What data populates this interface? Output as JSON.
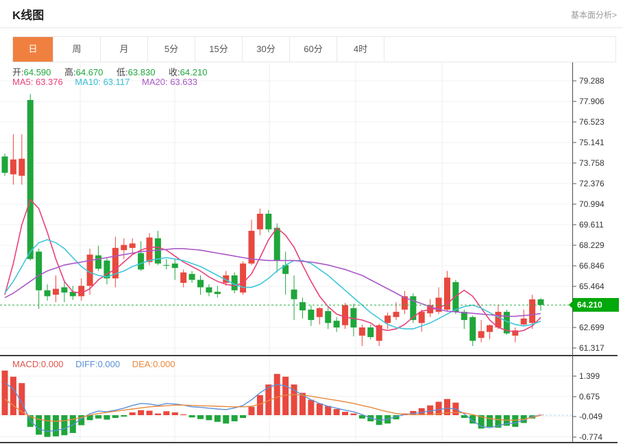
{
  "header": {
    "title": "K线图",
    "link": "基本面分析>"
  },
  "tabs": [
    {
      "key": "day",
      "label": "日",
      "active": true
    },
    {
      "key": "week",
      "label": "周",
      "active": false
    },
    {
      "key": "month",
      "label": "月",
      "active": false
    },
    {
      "key": "5min",
      "label": "5分",
      "active": false
    },
    {
      "key": "15min",
      "label": "15分",
      "active": false
    },
    {
      "key": "30min",
      "label": "30分",
      "active": false
    },
    {
      "key": "60min",
      "label": "60分",
      "active": false
    },
    {
      "key": "4hour",
      "label": "4时",
      "active": false
    }
  ],
  "ohlc": {
    "open_label": "开:",
    "open": "64.590",
    "high_label": "高:",
    "high": "64.670",
    "low_label": "低:",
    "low": "63.830",
    "close_label": "收:",
    "close": "64.210"
  },
  "ma_header": {
    "ma5_label": "MA5:",
    "ma5": "63.376",
    "ma10_label": "MA10:",
    "ma10": "63.117",
    "ma20_label": "MA20:",
    "ma20": "63.633"
  },
  "macd_header": {
    "macd_label": "MACD:",
    "macd": "0.000",
    "diff_label": "DIFF:",
    "diff": "0.000",
    "dea_label": "DEA:",
    "dea": "0.000"
  },
  "colors": {
    "up": "#e8483e",
    "down": "#1fa63b",
    "ma5": "#e8407a",
    "ma10": "#3ec6da",
    "ma20": "#a958c8",
    "diff": "#5b8fd8",
    "dea": "#e8883c",
    "tab_accent": "#f0803f",
    "price_badge": "#00a80b",
    "price_line": "#2cab44",
    "macd_current_line": "#a8d8ef",
    "grid": "#f1f1f1",
    "vgrid": "#ececec",
    "axis_line": "#4a4a4a"
  },
  "chart_data": {
    "type": "candlestick+macd",
    "main": {
      "y_ticks": [
        "79.288",
        "77.906",
        "76.523",
        "75.141",
        "73.758",
        "72.376",
        "70.994",
        "69.611",
        "68.229",
        "66.846",
        "65.464",
        "62.699",
        "61.317"
      ],
      "y_tick_values": [
        79.288,
        77.906,
        76.523,
        75.141,
        73.758,
        72.376,
        70.994,
        69.611,
        68.229,
        66.846,
        65.464,
        62.699,
        61.317
      ],
      "price_line_value": 64.21,
      "price_badge_label": "64.210",
      "v_gridlines": [
        117,
        255,
        393,
        519,
        645
      ],
      "candles": [
        [
          74.2,
          74.4,
          72.9,
          73.1
        ],
        [
          73.0,
          75.7,
          72.3,
          74.0
        ],
        [
          72.9,
          75.7,
          72.3,
          74.05
        ],
        [
          78.0,
          78.4,
          67.2,
          67.3
        ],
        [
          67.8,
          68.0,
          63.95,
          65.2
        ],
        [
          65.2,
          65.6,
          64.5,
          64.8
        ],
        [
          64.9,
          66.2,
          64.4,
          65.3
        ],
        [
          65.4,
          65.9,
          64.4,
          65.05
        ],
        [
          65.1,
          65.5,
          64.55,
          64.8
        ],
        [
          64.8,
          66.0,
          64.5,
          65.5
        ],
        [
          65.5,
          68.0,
          64.9,
          67.6
        ],
        [
          67.55,
          68.2,
          66.5,
          66.65
        ],
        [
          67.2,
          67.4,
          65.6,
          66.0
        ],
        [
          66.0,
          68.8,
          65.4,
          68.05
        ],
        [
          67.9,
          68.7,
          67.3,
          68.25
        ],
        [
          68.05,
          68.7,
          67.6,
          68.35
        ],
        [
          67.7,
          68.5,
          66.5,
          66.6
        ],
        [
          67.1,
          69.05,
          66.9,
          68.75
        ],
        [
          68.7,
          69.2,
          66.9,
          67.0
        ],
        [
          66.9,
          67.3,
          66.6,
          66.85
        ],
        [
          67.0,
          67.3,
          65.9,
          66.7
        ],
        [
          65.7,
          66.6,
          65.4,
          66.4
        ],
        [
          66.3,
          66.5,
          65.7,
          65.9
        ],
        [
          65.9,
          66.2,
          64.9,
          65.4
        ],
        [
          65.4,
          65.6,
          64.8,
          65.05
        ],
        [
          65.1,
          65.5,
          64.7,
          64.95
        ],
        [
          65.7,
          66.5,
          65.5,
          66.2
        ],
        [
          66.2,
          66.4,
          65.0,
          65.2
        ],
        [
          65.05,
          67.15,
          64.9,
          67.0
        ],
        [
          67.0,
          69.95,
          66.9,
          69.2
        ],
        [
          69.3,
          70.7,
          68.9,
          70.35
        ],
        [
          70.35,
          70.6,
          69.1,
          69.3
        ],
        [
          69.4,
          69.7,
          66.4,
          67.2
        ],
        [
          66.9,
          67.8,
          64.9,
          66.3
        ],
        [
          65.25,
          66.2,
          63.2,
          64.6
        ],
        [
          64.4,
          64.7,
          63.3,
          63.85
        ],
        [
          63.9,
          64.2,
          62.8,
          63.2
        ],
        [
          63.4,
          64.05,
          62.9,
          64.0
        ],
        [
          63.8,
          64.1,
          62.6,
          63.0
        ],
        [
          63.15,
          63.4,
          62.4,
          62.7
        ],
        [
          62.85,
          64.35,
          62.6,
          64.2
        ],
        [
          64.0,
          64.3,
          62.1,
          62.7
        ],
        [
          62.15,
          62.9,
          61.45,
          62.7
        ],
        [
          62.7,
          62.9,
          61.9,
          62.05
        ],
        [
          61.8,
          62.95,
          61.45,
          62.85
        ],
        [
          63.0,
          63.7,
          62.6,
          63.5
        ],
        [
          63.4,
          64.4,
          63.2,
          63.75
        ],
        [
          63.9,
          65.15,
          63.6,
          64.8
        ],
        [
          64.8,
          65.0,
          63.0,
          63.2
        ],
        [
          63.0,
          63.9,
          62.4,
          63.75
        ],
        [
          63.65,
          64.6,
          63.4,
          64.2
        ],
        [
          63.75,
          65.4,
          63.6,
          64.7
        ],
        [
          63.9,
          66.5,
          63.8,
          66.05
        ],
        [
          65.75,
          65.9,
          63.6,
          63.75
        ],
        [
          63.75,
          63.9,
          62.6,
          63.2
        ],
        [
          63.4,
          63.5,
          61.45,
          61.8
        ],
        [
          62.0,
          63.2,
          61.7,
          62.45
        ],
        [
          62.4,
          62.9,
          61.9,
          62.85
        ],
        [
          62.7,
          64.2,
          62.6,
          63.75
        ],
        [
          63.75,
          63.9,
          62.2,
          62.3
        ],
        [
          62.15,
          62.7,
          61.7,
          62.5
        ],
        [
          62.9,
          63.9,
          62.8,
          63.3
        ],
        [
          63.0,
          64.9,
          62.6,
          64.59
        ],
        [
          64.59,
          64.67,
          63.83,
          64.21
        ]
      ],
      "ma5": [
        64.9,
        67.0,
        69.6,
        71.3,
        70.7,
        69.1,
        67.3,
        65.8,
        65.1,
        65.0,
        65.3,
        65.9,
        66.3,
        66.6,
        67.1,
        67.6,
        67.9,
        68.1,
        68.1,
        67.9,
        67.5,
        67.1,
        66.8,
        66.5,
        66.1,
        65.8,
        65.6,
        65.5,
        65.7,
        66.3,
        67.4,
        68.6,
        69.4,
        68.9,
        68.1,
        66.9,
        65.8,
        64.8,
        64.1,
        63.6,
        63.4,
        63.3,
        63.2,
        63.0,
        62.6,
        62.5,
        62.6,
        62.9,
        63.4,
        63.8,
        63.9,
        64.0,
        64.3,
        64.8,
        65.2,
        64.8,
        64.0,
        63.2,
        62.7,
        62.5,
        62.4,
        62.5,
        62.8,
        63.376
      ],
      "ma10": [
        65.0,
        65.8,
        66.8,
        67.8,
        68.4,
        68.6,
        68.4,
        68.0,
        67.4,
        66.8,
        66.4,
        66.2,
        66.1,
        66.3,
        66.5,
        66.8,
        67.0,
        67.2,
        67.3,
        67.4,
        67.3,
        67.2,
        67.0,
        66.8,
        66.5,
        66.2,
        65.9,
        65.6,
        65.4,
        65.4,
        65.6,
        66.0,
        66.5,
        66.9,
        67.2,
        67.2,
        67.0,
        66.6,
        66.2,
        65.7,
        65.2,
        64.7,
        64.2,
        63.7,
        63.3,
        62.9,
        62.7,
        62.6,
        62.6,
        62.8,
        63.0,
        63.3,
        63.6,
        63.9,
        64.1,
        64.2,
        64.0,
        63.7,
        63.4,
        63.1,
        62.9,
        62.8,
        62.9,
        63.117
      ],
      "ma20": [
        64.7,
        65.0,
        65.4,
        65.8,
        66.2,
        66.5,
        66.7,
        66.9,
        67.0,
        67.1,
        67.2,
        67.3,
        67.4,
        67.5,
        67.6,
        67.7,
        67.8,
        67.85,
        67.9,
        67.95,
        68.0,
        68.0,
        67.95,
        67.9,
        67.8,
        67.7,
        67.6,
        67.5,
        67.4,
        67.3,
        67.25,
        67.2,
        67.2,
        67.2,
        67.2,
        67.15,
        67.1,
        67.0,
        66.9,
        66.75,
        66.6,
        66.4,
        66.2,
        65.9,
        65.6,
        65.3,
        65.0,
        64.7,
        64.5,
        64.3,
        64.1,
        63.9,
        63.8,
        63.75,
        63.7,
        63.65,
        63.6,
        63.55,
        63.5,
        63.45,
        63.45,
        63.5,
        63.55,
        63.633
      ]
    },
    "macd": {
      "y_ticks": [
        "1.399",
        "0.675",
        "-0.049",
        "-0.774"
      ],
      "y_tick_values": [
        1.399,
        0.675,
        -0.049,
        -0.774
      ],
      "current_value": 0.0,
      "bars": [
        1.6,
        1.38,
        1.15,
        -0.42,
        -0.7,
        -0.78,
        -0.76,
        -0.72,
        -0.64,
        -0.36,
        -0.18,
        -0.12,
        -0.16,
        -0.1,
        -0.05,
        0.1,
        0.18,
        0.16,
        0.06,
        0.14,
        0.1,
        0.03,
        -0.08,
        -0.14,
        -0.18,
        -0.24,
        -0.3,
        -0.22,
        -0.1,
        0.3,
        0.72,
        1.1,
        1.48,
        1.38,
        1.1,
        0.8,
        0.55,
        0.42,
        0.33,
        0.22,
        0.12,
        0.06,
        -0.12,
        -0.22,
        -0.35,
        -0.3,
        -0.15,
        0.06,
        0.15,
        0.25,
        0.35,
        0.48,
        0.58,
        0.45,
        -0.1,
        -0.3,
        -0.48,
        -0.42,
        -0.45,
        -0.38,
        -0.42,
        -0.28,
        -0.12,
        0.02
      ],
      "diff": [
        1.15,
        0.95,
        0.45,
        -0.2,
        -0.5,
        -0.58,
        -0.55,
        -0.48,
        -0.35,
        -0.12,
        0.05,
        0.15,
        0.12,
        0.18,
        0.25,
        0.35,
        0.42,
        0.4,
        0.35,
        0.42,
        0.4,
        0.36,
        0.3,
        0.28,
        0.25,
        0.22,
        0.2,
        0.26,
        0.35,
        0.55,
        0.8,
        1.0,
        1.1,
        1.05,
        0.9,
        0.72,
        0.55,
        0.42,
        0.32,
        0.25,
        0.18,
        0.12,
        0.02,
        -0.1,
        -0.18,
        -0.15,
        -0.05,
        0.02,
        0.06,
        0.1,
        0.15,
        0.2,
        0.25,
        0.22,
        0.05,
        -0.2,
        -0.4,
        -0.45,
        -0.38,
        -0.3,
        -0.28,
        -0.18,
        -0.05,
        0.0
      ],
      "dea": [
        0.58,
        0.35,
        0.12,
        -0.05,
        -0.15,
        -0.2,
        -0.22,
        -0.2,
        -0.15,
        -0.08,
        0.0,
        0.06,
        0.1,
        0.14,
        0.18,
        0.22,
        0.26,
        0.3,
        0.32,
        0.34,
        0.36,
        0.36,
        0.35,
        0.34,
        0.33,
        0.32,
        0.31,
        0.3,
        0.3,
        0.32,
        0.4,
        0.52,
        0.65,
        0.72,
        0.74,
        0.72,
        0.68,
        0.63,
        0.58,
        0.53,
        0.48,
        0.42,
        0.35,
        0.28,
        0.2,
        0.12,
        0.06,
        0.03,
        0.02,
        0.02,
        0.03,
        0.05,
        0.08,
        0.1,
        0.08,
        0.02,
        -0.06,
        -0.12,
        -0.16,
        -0.18,
        -0.18,
        -0.15,
        -0.08,
        0.0
      ]
    }
  }
}
